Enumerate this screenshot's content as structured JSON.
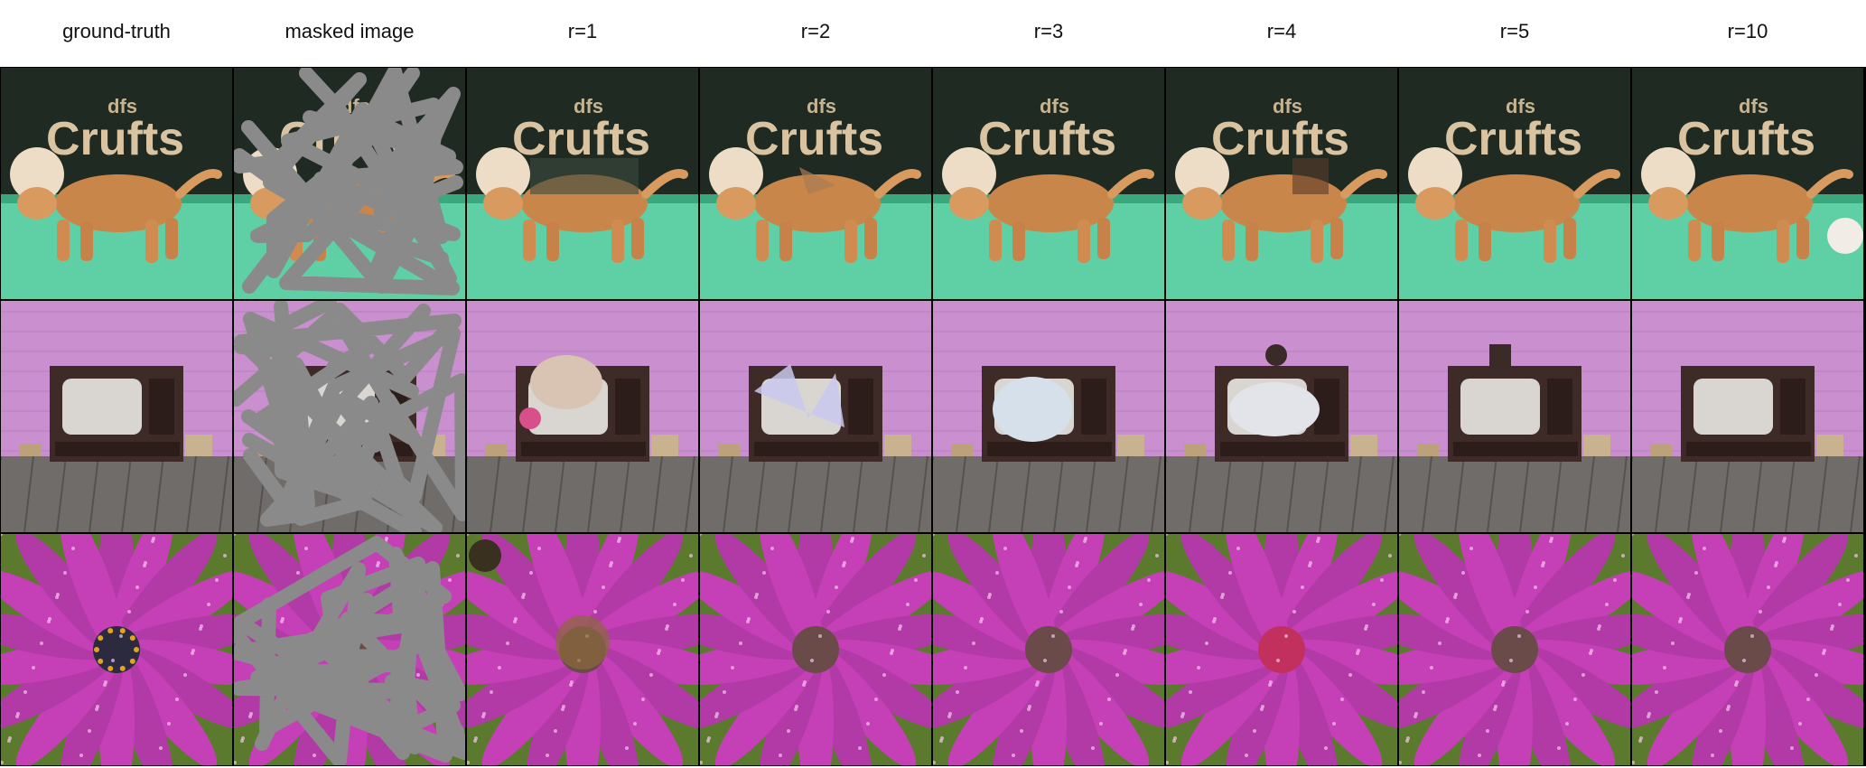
{
  "figure": {
    "columns": [
      {
        "label": "ground-truth"
      },
      {
        "label": "masked image"
      },
      {
        "label": "r=1"
      },
      {
        "label": "r=2"
      },
      {
        "label": "r=3"
      },
      {
        "label": "r=4"
      },
      {
        "label": "r=5"
      },
      {
        "label": "r=10"
      }
    ],
    "rows": [
      {
        "scene": "dog",
        "logo_text": "Crufts",
        "logo_small": "dfs"
      },
      {
        "scene": "television",
        "logo_text": "",
        "logo_small": ""
      },
      {
        "scene": "flower",
        "logo_text": "",
        "logo_small": ""
      }
    ],
    "colors": {
      "dog_bg_top": "#1f2b22",
      "dog_floor": "#5fd0a6",
      "dog_fur": "#c9864a",
      "tv_wall": "#c98fcf",
      "tv_floor": "#6f6c6a",
      "tv_cabinet": "#3e2a26",
      "flower_petal": "#c53fb7",
      "flower_bg": "#5b7a2e",
      "mask_gray": "#8a8a8a"
    }
  }
}
